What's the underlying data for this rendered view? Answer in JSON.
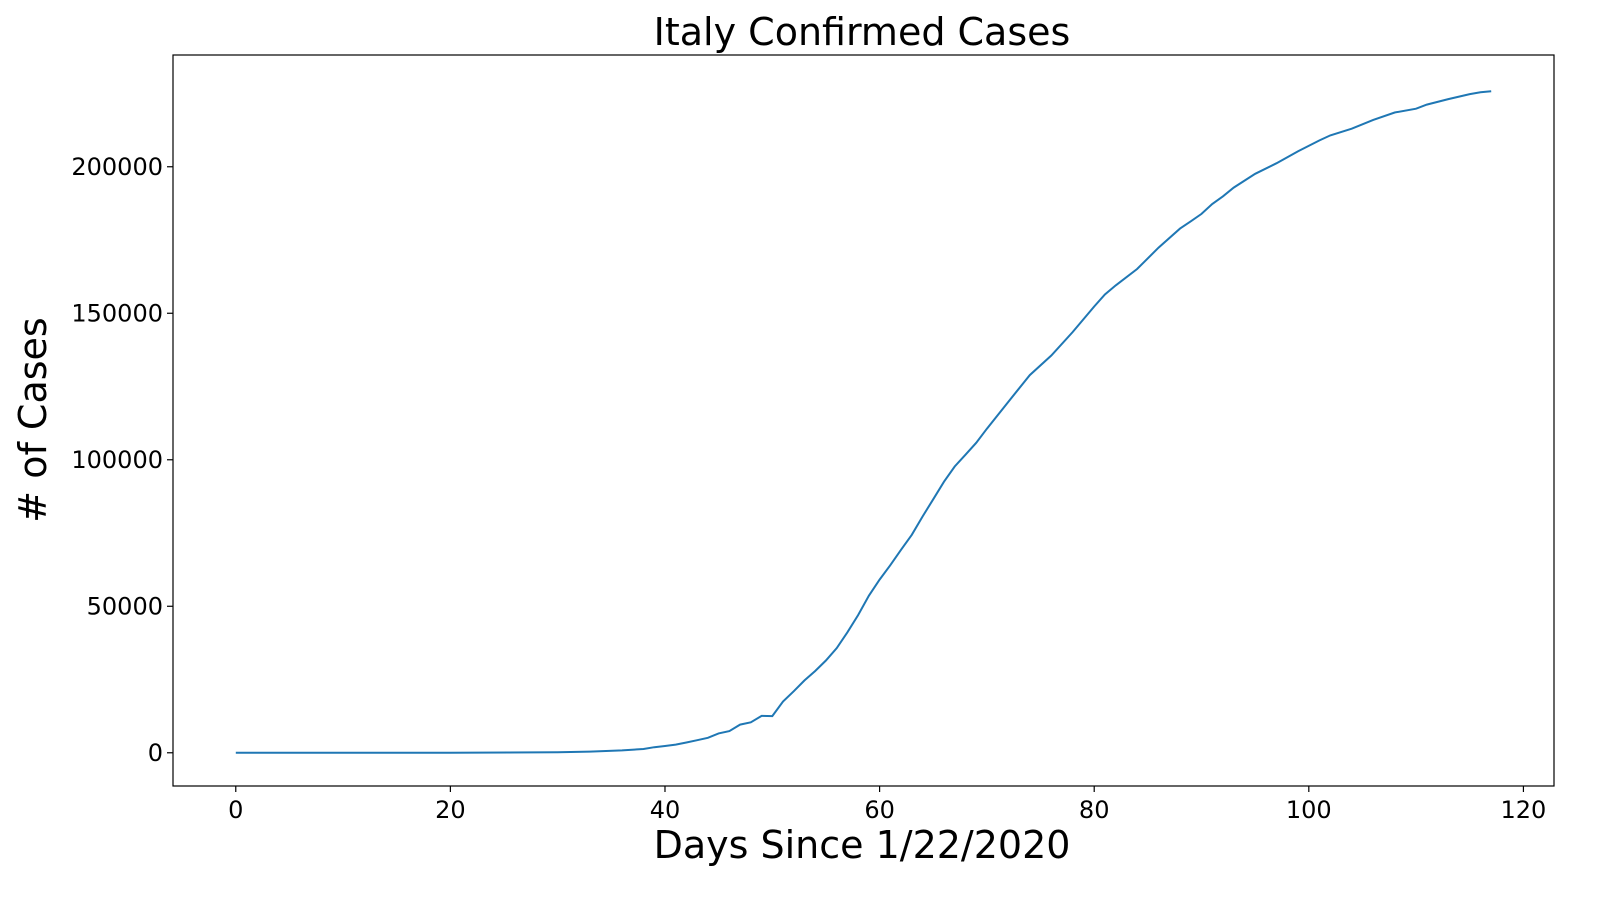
{
  "chart_data": {
    "type": "line",
    "title": "Italy Confirmed Cases",
    "xlabel": "Days Since 1/22/2020",
    "ylabel": "# of Cases",
    "xlim": [
      -5.85,
      122.85
    ],
    "ylim": [
      -11340,
      238140
    ],
    "xticks": [
      0,
      20,
      40,
      60,
      80,
      100,
      120
    ],
    "yticks": [
      0,
      50000,
      100000,
      150000,
      200000
    ],
    "grid": false,
    "line_color": "#1f77b4",
    "series": [
      {
        "x": [
          0,
          10,
          20,
          30,
          33,
          36,
          38,
          39,
          40,
          41,
          42,
          43,
          44,
          45,
          46,
          47,
          48,
          49,
          50,
          51,
          52,
          53,
          54,
          55,
          56,
          57,
          58,
          59,
          60,
          61,
          62,
          63,
          64,
          65,
          66,
          67,
          68,
          69,
          70,
          72,
          74,
          76,
          78,
          80,
          81,
          82,
          84,
          86,
          88,
          89,
          90,
          91,
          92,
          93,
          95,
          97,
          99,
          101,
          102,
          104,
          106,
          108,
          110,
          111,
          113,
          115,
          116,
          117
        ],
        "y": [
          0,
          0,
          0,
          200,
          400,
          800,
          1300,
          1900,
          2300,
          2800,
          3500,
          4300,
          5100,
          6600,
          7400,
          9600,
          10400,
          12600,
          12500,
          17500,
          21000,
          24700,
          27900,
          31500,
          35700,
          41100,
          47000,
          53600,
          59100,
          64000,
          69300,
          74400,
          80600,
          86500,
          92500,
          97700,
          101700,
          105800,
          110600,
          119800,
          128900,
          135600,
          143600,
          152300,
          156400,
          159500,
          165100,
          172400,
          178900,
          181400,
          183900,
          187300,
          189900,
          192900,
          197600,
          201200,
          205300,
          209000,
          210700,
          213000,
          216000,
          218500,
          219800,
          221200,
          223100,
          224800,
          225400,
          225800
        ]
      }
    ]
  }
}
